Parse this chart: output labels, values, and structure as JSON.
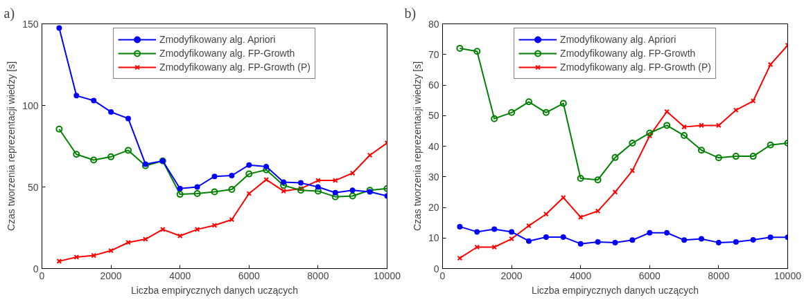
{
  "chart_data": [
    {
      "type": "line",
      "title": "a)",
      "xlabel": "Liczba empirycznych danych uczących",
      "ylabel": "Czas tworzenia reprezentacji wiedzy [s]",
      "x": [
        500,
        1000,
        1500,
        2000,
        2500,
        3000,
        3500,
        4000,
        4500,
        5000,
        5500,
        6000,
        6500,
        7000,
        7500,
        8000,
        8500,
        9000,
        9500,
        10000
      ],
      "xlim": [
        0,
        10000
      ],
      "xticks": [
        0,
        2000,
        4000,
        6000,
        8000,
        10000
      ],
      "ylim": [
        0,
        150
      ],
      "yticks": [
        0,
        50,
        100,
        150
      ],
      "grid": false,
      "legend": "top",
      "series": [
        {
          "name": "Zmodyfikowany alg. Apriori",
          "color": "#0000ff",
          "marker": "circle",
          "values": [
            147.5,
            106,
            103,
            96,
            92,
            64,
            66,
            49,
            50,
            56.5,
            57,
            63.5,
            62.5,
            53,
            52.5,
            50,
            46.5,
            48,
            47,
            44.5
          ]
        },
        {
          "name": "Zmodyfikowany alg. FP-Growth",
          "color": "#008000",
          "marker": "circle",
          "values": [
            85.5,
            70,
            66.5,
            68.5,
            72.5,
            63,
            66,
            45.5,
            46,
            47,
            48.5,
            58,
            60.5,
            51,
            48,
            47.5,
            44,
            44.5,
            48,
            49
          ]
        },
        {
          "name": "Zmodyfikowany alg. FP-Growth (P)",
          "color": "#ff0000",
          "marker": "cross",
          "values": [
            4.5,
            7,
            8,
            11,
            16,
            18,
            24,
            20,
            24,
            26.5,
            30,
            46,
            54.5,
            47.5,
            49,
            54,
            54,
            58.5,
            69.5,
            77
          ]
        }
      ]
    },
    {
      "type": "line",
      "title": "b)",
      "xlabel": "Liczba empirycznych danych uczących",
      "ylabel": "Czas tworzenia reprezentacji wiedzy [s]",
      "x": [
        500,
        1000,
        1500,
        2000,
        2500,
        3000,
        3500,
        4000,
        4500,
        5000,
        5500,
        6000,
        6500,
        7000,
        7500,
        8000,
        8500,
        9000,
        9500,
        10000
      ],
      "xlim": [
        0,
        10000
      ],
      "xticks": [
        0,
        2000,
        4000,
        6000,
        8000,
        10000
      ],
      "ylim": [
        0,
        80
      ],
      "yticks": [
        0,
        10,
        20,
        30,
        40,
        50,
        60,
        70,
        80
      ],
      "grid": false,
      "legend": "top",
      "series": [
        {
          "name": "Zmodyfikowany alg. Apriori",
          "color": "#0000ff",
          "marker": "circle",
          "values": [
            13.7,
            12,
            12.9,
            12,
            9,
            10.3,
            10.3,
            8.1,
            8.7,
            8.5,
            9.3,
            11.7,
            11.7,
            9.3,
            9.7,
            8.5,
            8.7,
            9.4,
            10.2,
            10.2
          ]
        },
        {
          "name": "Zmodyfikowany alg. FP-Growth",
          "color": "#008000",
          "marker": "circle",
          "values": [
            72,
            71,
            49,
            51,
            54.5,
            51,
            54,
            29.5,
            29,
            36.3,
            41,
            44.3,
            46.8,
            43.5,
            38.7,
            36.2,
            36.7,
            36.7,
            40.4,
            41
          ]
        },
        {
          "name": "Zmodyfikowany alg. FP-Growth (P)",
          "color": "#ff0000",
          "marker": "cross",
          "values": [
            3.4,
            7,
            7,
            9.7,
            14,
            17.8,
            23.2,
            16.8,
            18.8,
            25,
            32,
            43.4,
            51.3,
            46.3,
            46.8,
            46.8,
            51.8,
            54.8,
            66.7,
            73
          ]
        }
      ]
    }
  ]
}
